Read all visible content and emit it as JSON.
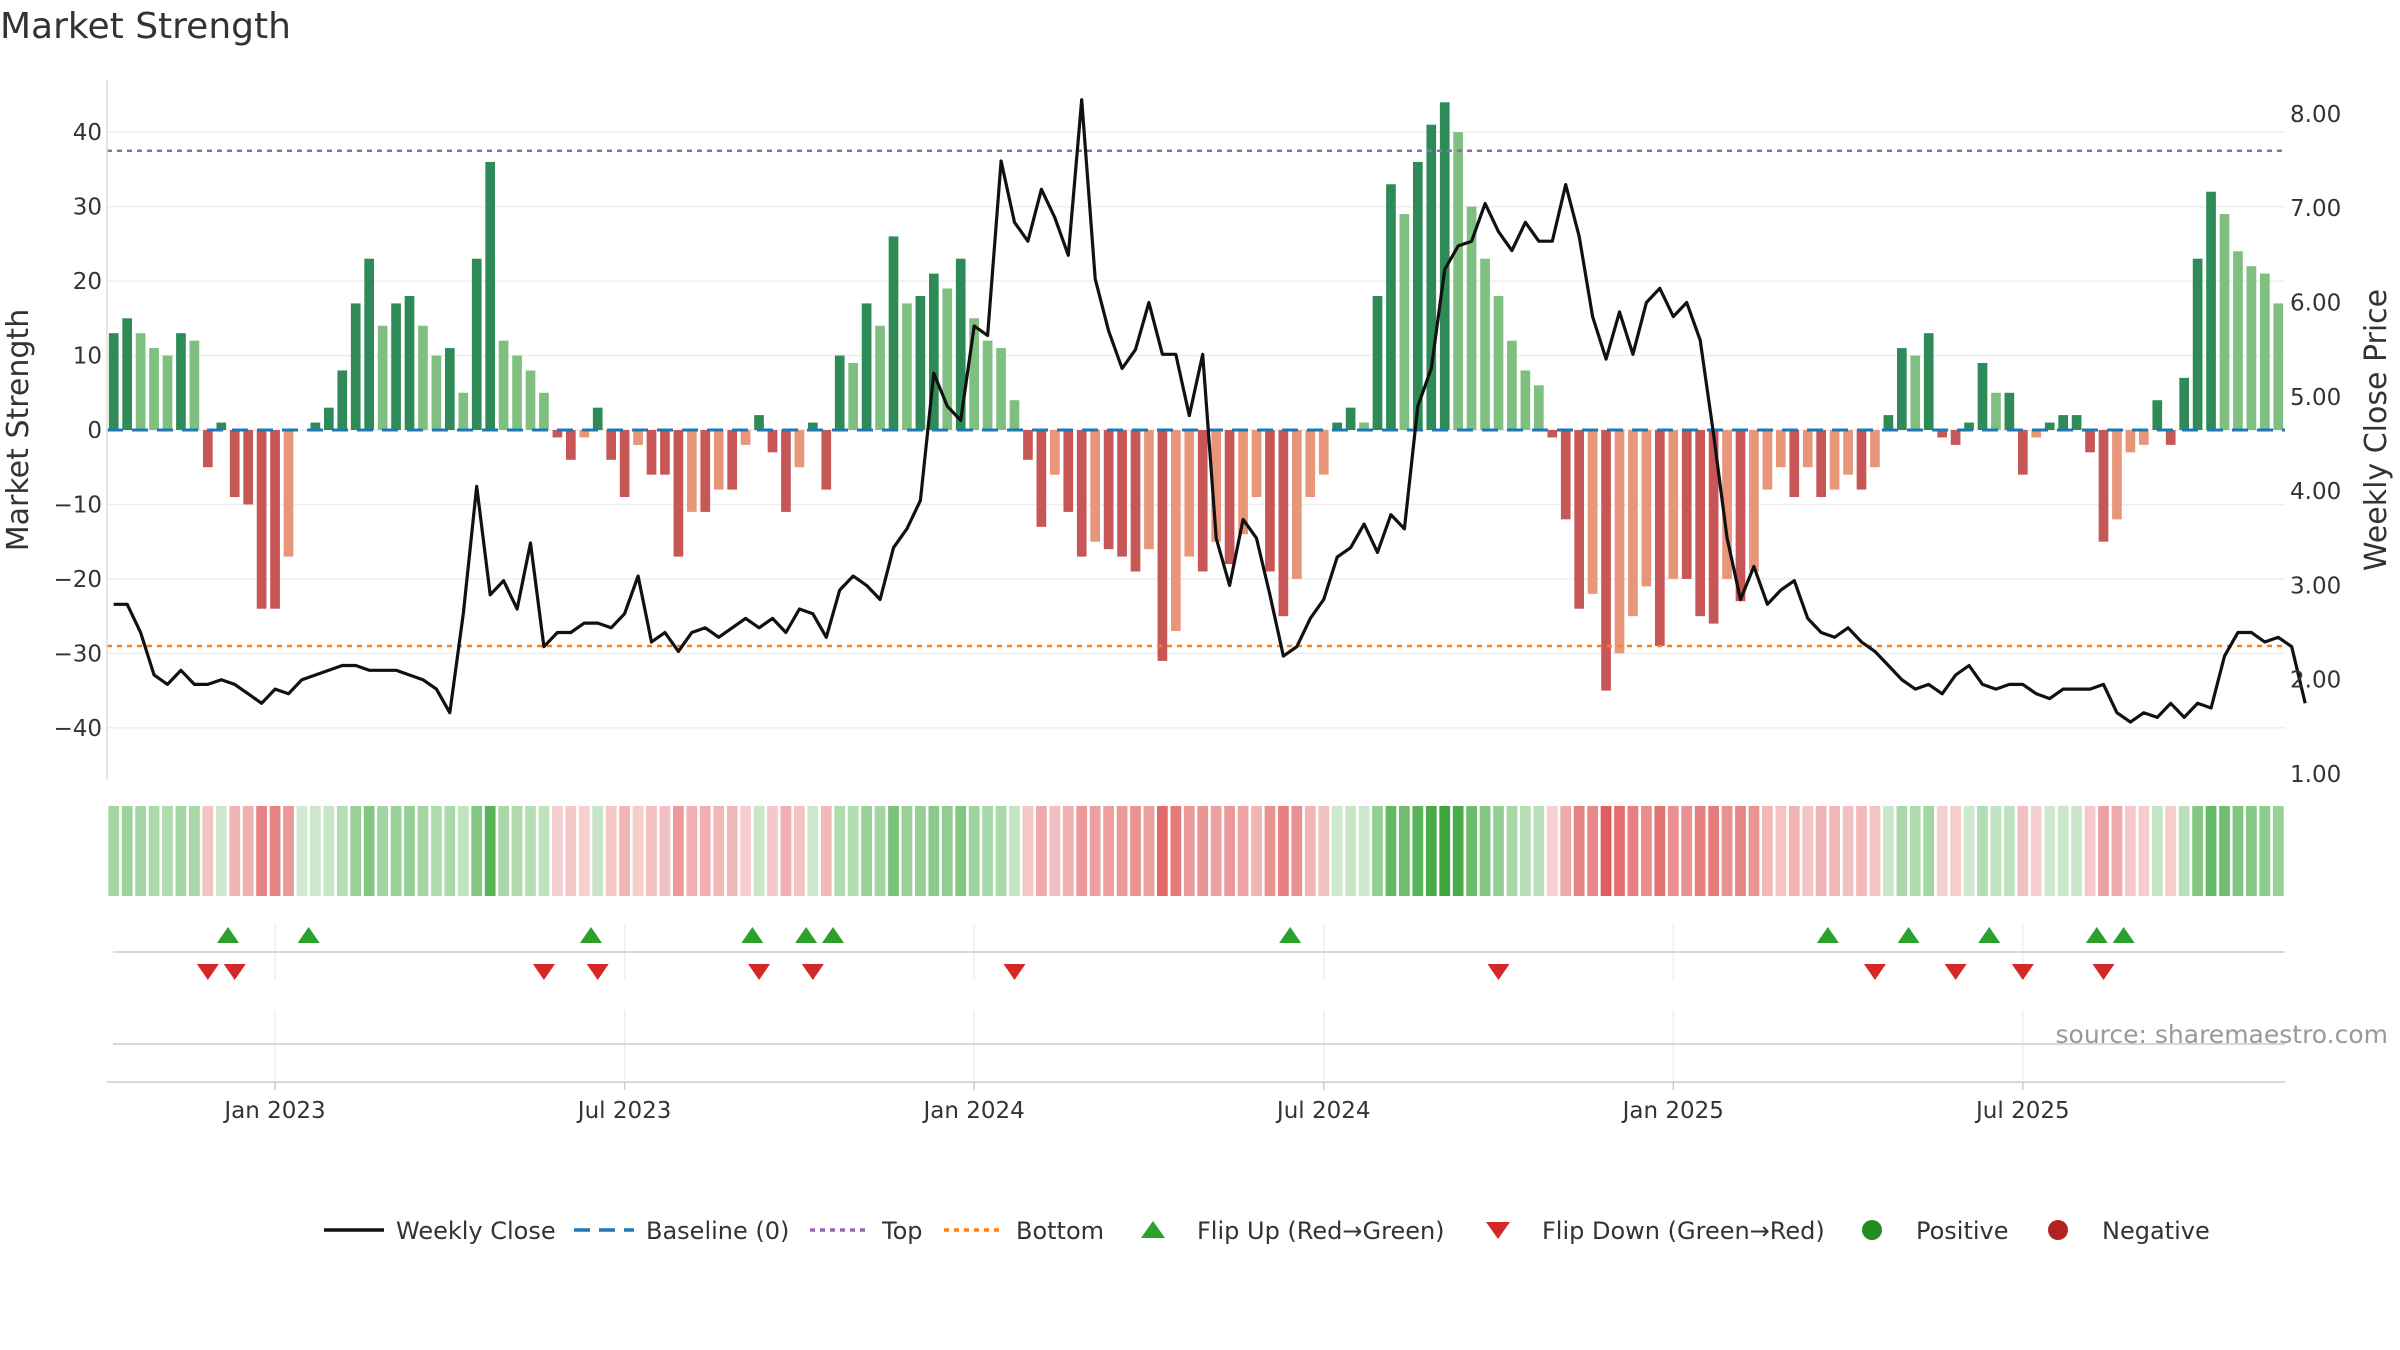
{
  "chart_data": {
    "type": "bar",
    "title": "Market Strength",
    "ylabel_left": "Market Strength",
    "ylabel_right": "Weekly Close Price",
    "source": "source: sharemaestro.com",
    "x_ticks": [
      "Jan 2023",
      "Jul 2023",
      "Jan 2024",
      "Jul 2024",
      "Jan 2025",
      "Jul 2025"
    ],
    "y_left_ticks": [
      "40",
      "30",
      "20",
      "10",
      "0",
      "−10",
      "−20",
      "−30",
      "−40"
    ],
    "y_left_values": [
      40,
      30,
      20,
      10,
      0,
      -10,
      -20,
      -30,
      -40
    ],
    "y_left_range": [
      -47,
      47
    ],
    "y_right_ticks": [
      "8.00",
      "7.00",
      "6.00",
      "5.00",
      "4.00",
      "3.00",
      "2.00",
      "1.00"
    ],
    "y_right_values": [
      8,
      7,
      6,
      5,
      4,
      3,
      2,
      1
    ],
    "y_right_range": [
      1,
      8.2
    ],
    "top_level": 37.5,
    "bottom_level": -29,
    "strength": [
      13,
      15,
      13,
      11,
      10,
      13,
      12,
      -5,
      1,
      -9,
      -10,
      -24,
      -24,
      -17,
      0,
      1,
      3,
      8,
      17,
      23,
      14,
      17,
      18,
      14,
      10,
      11,
      5,
      23,
      36,
      12,
      10,
      8,
      5,
      -1,
      -4,
      -1,
      3,
      -4,
      -9,
      -2,
      -6,
      -6,
      -17,
      -11,
      -11,
      -8,
      -8,
      -2,
      2,
      -3,
      -11,
      -5,
      1,
      -8,
      10,
      9,
      17,
      14,
      26,
      17,
      18,
      21,
      19,
      23,
      15,
      12,
      11,
      4,
      -4,
      -13,
      -6,
      -11,
      -17,
      -15,
      -16,
      -17,
      -19,
      -16,
      -31,
      -27,
      -17,
      -19,
      -15,
      -18,
      -14,
      -9,
      -19,
      -25,
      -20,
      -9,
      -6,
      1,
      3,
      1,
      18,
      33,
      29,
      36,
      41,
      44,
      40,
      30,
      23,
      18,
      12,
      8,
      6,
      -1,
      -12,
      -24,
      -22,
      -35,
      -30,
      -25,
      -21,
      -29,
      -20,
      -20,
      -25,
      -26,
      -20,
      -23,
      -19,
      -8,
      -5,
      -9,
      -5,
      -9,
      -8,
      -6,
      -8,
      -5,
      2,
      11,
      10,
      13,
      -1,
      -2,
      1,
      9,
      5,
      5,
      -6,
      -1,
      1,
      2,
      2,
      -3,
      -15,
      -12,
      -3,
      -2,
      4,
      -2,
      7,
      23,
      32,
      29,
      24,
      22,
      21,
      17
    ],
    "weekly_close": [
      2.8,
      2.8,
      2.5,
      2.05,
      1.95,
      2.1,
      1.95,
      1.95,
      2,
      1.95,
      1.85,
      1.75,
      1.9,
      1.85,
      2,
      2.05,
      2.1,
      2.15,
      2.15,
      2.1,
      2.1,
      2.1,
      2.05,
      2,
      1.9,
      1.65,
      2.7,
      4.05,
      2.9,
      3.05,
      2.75,
      3.45,
      2.35,
      2.5,
      2.5,
      2.6,
      2.6,
      2.55,
      2.7,
      3.1,
      2.4,
      2.5,
      2.3,
      2.5,
      2.55,
      2.45,
      2.55,
      2.65,
      2.55,
      2.65,
      2.5,
      2.75,
      2.7,
      2.45,
      2.95,
      3.1,
      3,
      2.85,
      3.4,
      3.6,
      3.9,
      5.25,
      4.9,
      4.75,
      5.75,
      5.65,
      7.5,
      6.85,
      6.65,
      7.2,
      6.9,
      6.5,
      8.15,
      6.25,
      5.7,
      5.3,
      5.5,
      6,
      5.45,
      5.45,
      4.8,
      5.45,
      3.5,
      3,
      3.7,
      3.5,
      2.9,
      2.25,
      2.35,
      2.65,
      2.85,
      3.3,
      3.4,
      3.65,
      3.35,
      3.75,
      3.6,
      4.9,
      5.3,
      6.35,
      6.6,
      6.65,
      7.05,
      6.75,
      6.55,
      6.85,
      6.65,
      6.65,
      7.25,
      6.7,
      5.85,
      5.4,
      5.9,
      5.45,
      6,
      6.15,
      5.85,
      6,
      5.6,
      4.6,
      3.5,
      2.85,
      3.2,
      2.8,
      2.95,
      3.05,
      2.65,
      2.5,
      2.45,
      2.55,
      2.4,
      2.3,
      2.15,
      2,
      1.9,
      1.95,
      1.85,
      2.05,
      2.15,
      1.95,
      1.9,
      1.95,
      1.95,
      1.85,
      1.8,
      1.9,
      1.9,
      1.9,
      1.95,
      1.65,
      1.55,
      1.65,
      1.6,
      1.75,
      1.6,
      1.75,
      1.7,
      2.25,
      2.5,
      2.5,
      2.4,
      2.45,
      2.35,
      1.75
    ],
    "flip_up_positions": [
      8.5,
      14.5,
      35.5,
      47.5,
      51.5,
      53.5,
      87.5,
      127.5,
      133.5,
      139.5,
      147.5,
      149.5
    ],
    "flip_down_positions": [
      7,
      9,
      32,
      36,
      48,
      52,
      67,
      103,
      131,
      137,
      142,
      148
    ],
    "legend": [
      "Weekly Close",
      "Baseline (0)",
      "Top",
      "Bottom",
      "Flip Up (Red→Green)",
      "Flip Down (Green→Red)",
      "Positive",
      "Negative"
    ],
    "colors": {
      "pos_strong": "#2e8b57",
      "pos_light": "#7fbf7f",
      "neg_strong": "#c75656",
      "neg_light": "#e8967a",
      "line": "#111111",
      "baseline": "#1f77b4",
      "top": "#9467bd",
      "bottom": "#ff7f0e",
      "flip_up": "#2ca02c",
      "flip_down": "#d62728",
      "positive": "#228b22",
      "negative": "#b22222"
    }
  }
}
